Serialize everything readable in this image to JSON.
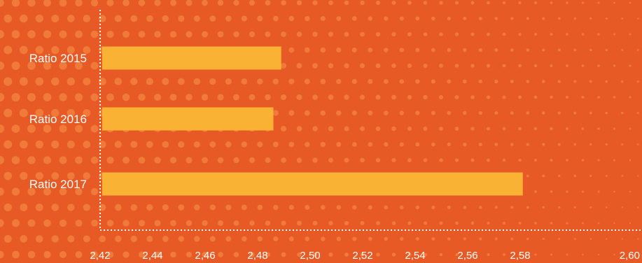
{
  "chart_data": {
    "type": "bar",
    "orientation": "horizontal",
    "categories": [
      "Ratio 2015",
      "Ratio 2016",
      "Ratio 2017"
    ],
    "values": [
      2.489,
      2.486,
      2.581
    ],
    "xlim": [
      2.42,
      2.6
    ],
    "x_ticks": [
      2.42,
      2.44,
      2.46,
      2.48,
      2.5,
      2.52,
      2.54,
      2.56,
      2.58,
      2.6
    ],
    "x_tick_labels": [
      "2,42",
      "2,44",
      "2,46",
      "2,48",
      "2,50",
      "2,52",
      "2,54",
      "2,56",
      "2,58",
      "2,60"
    ],
    "title": "",
    "xlabel": "",
    "ylabel": "",
    "grid": false,
    "legend": "none",
    "colors": {
      "background": "#e85a25",
      "bar": "#f9b233",
      "dots": "#f07a3a",
      "axis": "#ffffff",
      "text": "#ffffff"
    }
  }
}
